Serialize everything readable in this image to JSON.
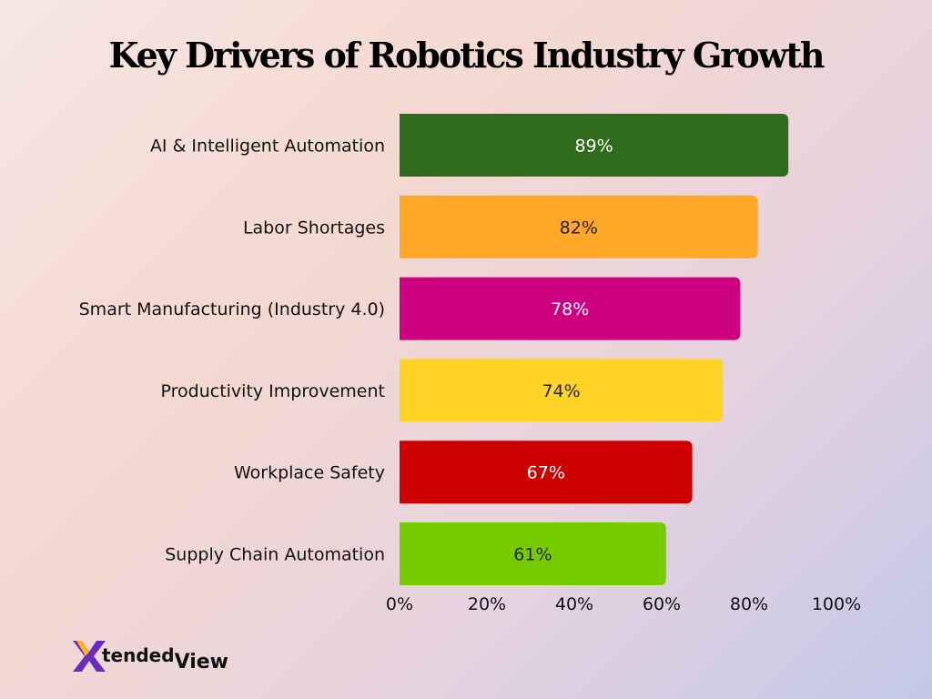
{
  "chart_data": {
    "type": "bar",
    "orientation": "horizontal",
    "title": "Key Drivers of Robotics Industry Growth",
    "categories": [
      "AI & Intelligent Automation",
      "Labor Shortages",
      "Smart Manufacturing (Industry 4.0)",
      "Productivity Improvement",
      "Workplace Safety",
      "Supply Chain Automation"
    ],
    "values": [
      89,
      82,
      78,
      74,
      67,
      61
    ],
    "data_labels": [
      "89%",
      "82%",
      "78%",
      "74%",
      "67%",
      "61%"
    ],
    "colors": [
      "#2f6b1b",
      "#ffa726",
      "#cc0080",
      "#ffd426",
      "#cc0000",
      "#77cc00"
    ],
    "label_colors": [
      "#ffffff",
      "#222222",
      "#ffffff",
      "#222222",
      "#ffffff",
      "#222222"
    ],
    "xlim": [
      0,
      100
    ],
    "xticks": [
      "0%",
      "20%",
      "40%",
      "60%",
      "80%",
      "100%"
    ],
    "grid": false,
    "xlabel": "",
    "ylabel": ""
  },
  "logo": {
    "brand": "XtendedView",
    "part1": "tended",
    "part2": "View"
  }
}
